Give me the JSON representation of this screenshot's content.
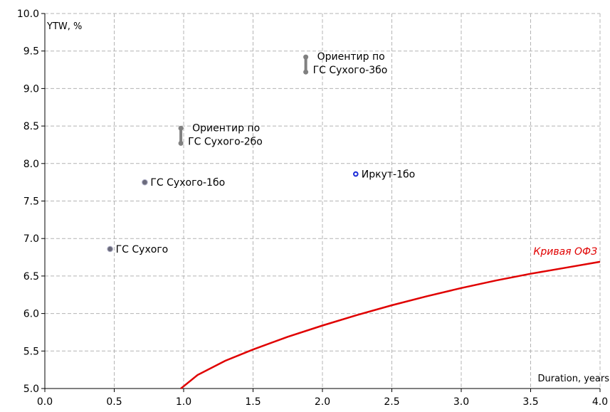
{
  "chart_data": {
    "type": "scatter",
    "title": "",
    "xlabel": "Duration, years",
    "ylabel": "YTW, %",
    "xlim": [
      0.0,
      4.0
    ],
    "ylim": [
      5.0,
      10.0
    ],
    "xticks": [
      "0.0",
      "0.5",
      "1.0",
      "1.5",
      "2.0",
      "2.5",
      "3.0",
      "3.5",
      "4.0"
    ],
    "yticks": [
      "5.0",
      "5.5",
      "6.0",
      "6.5",
      "7.0",
      "7.5",
      "8.0",
      "8.5",
      "9.0",
      "9.5",
      "10.0"
    ],
    "grid": true,
    "points": [
      {
        "label": "ГС Сухого",
        "x": 0.47,
        "y": 6.86,
        "color": "#6b6b7b"
      },
      {
        "label": "ГС Сухого-1бо",
        "x": 0.72,
        "y": 7.75,
        "color": "#6b6b7b"
      },
      {
        "label": "Иркут-1бо",
        "x": 2.24,
        "y": 7.86,
        "color": "#1a2bd8",
        "hollow": true
      }
    ],
    "ranges": [
      {
        "label_line1": "Ориентир по",
        "label_line2": "ГС Сухого-2бо",
        "x": 0.98,
        "y_low": 8.27,
        "y_high": 8.47,
        "color": "#808080"
      },
      {
        "label_line1": "Ориентир по",
        "label_line2": "ГС Сухого-3бо",
        "x": 1.88,
        "y_low": 9.22,
        "y_high": 9.42,
        "color": "#808080"
      }
    ],
    "curve": {
      "name": "Кривая ОФЗ",
      "color": "#e00000",
      "x": [
        0.98,
        1.1,
        1.3,
        1.5,
        1.75,
        2.0,
        2.25,
        2.5,
        2.75,
        3.0,
        3.25,
        3.5,
        3.75,
        4.0
      ],
      "y": [
        5.0,
        5.18,
        5.37,
        5.52,
        5.69,
        5.84,
        5.98,
        6.11,
        6.23,
        6.34,
        6.44,
        6.53,
        6.61,
        6.69
      ]
    }
  }
}
